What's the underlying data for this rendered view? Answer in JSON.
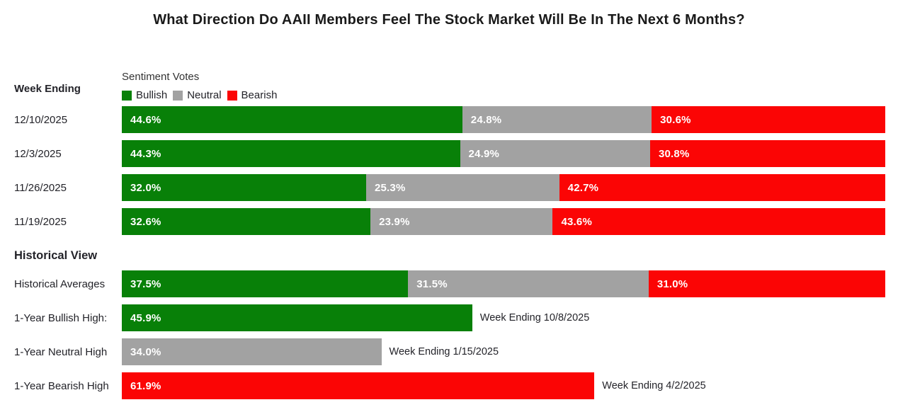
{
  "title": "What Direction Do AAII Members Feel The Stock Market Will Be In The Next 6 Months?",
  "colors": {
    "bullish": "#088008",
    "neutral": "#a2a2a2",
    "bearish": "#fb0505"
  },
  "left_header": "Week Ending",
  "legend": {
    "title": "Sentiment Votes",
    "items": [
      {
        "label": "Bullish"
      },
      {
        "label": "Neutral"
      },
      {
        "label": "Bearish"
      }
    ]
  },
  "weekly_rows": [
    {
      "date": "12/10/2025",
      "segments": [
        {
          "label": "44.6%",
          "pct": 44.6
        },
        {
          "label": "24.8%",
          "pct": 24.8
        },
        {
          "label": "30.6%",
          "pct": 30.6
        }
      ]
    },
    {
      "date": "12/3/2025",
      "segments": [
        {
          "label": "44.3%",
          "pct": 44.3
        },
        {
          "label": "24.9%",
          "pct": 24.9
        },
        {
          "label": "30.8%",
          "pct": 30.8
        }
      ]
    },
    {
      "date": "11/26/2025",
      "segments": [
        {
          "label": "32.0%",
          "pct": 32.0
        },
        {
          "label": "25.3%",
          "pct": 25.3
        },
        {
          "label": "42.7%",
          "pct": 42.7
        }
      ]
    },
    {
      "date": "11/19/2025",
      "segments": [
        {
          "label": "32.6%",
          "pct": 32.6
        },
        {
          "label": "23.9%",
          "pct": 23.9
        },
        {
          "label": "43.6%",
          "pct": 43.6
        }
      ]
    }
  ],
  "historical": {
    "heading": "Historical View",
    "averages": {
      "label": "Historical Averages",
      "segments": [
        {
          "label": "37.5%",
          "pct": 37.5
        },
        {
          "label": "31.5%",
          "pct": 31.5
        },
        {
          "label": "31.0%",
          "pct": 31.0
        }
      ]
    },
    "highs": [
      {
        "label": "1-Year Bullish High:",
        "bar_label": "45.9%",
        "pct": 45.9,
        "note": "Week Ending 10/8/2025"
      },
      {
        "label": "1-Year Neutral High",
        "bar_label": "34.0%",
        "pct": 34.0,
        "note": "Week Ending 1/15/2025"
      },
      {
        "label": "1-Year Bearish High",
        "bar_label": "61.9%",
        "pct": 61.9,
        "note": "Week Ending 4/2/2025"
      }
    ]
  },
  "chart_data": {
    "type": "bar",
    "subtype": "stacked-horizontal",
    "title": "What Direction Do AAII Members Feel The Stock Market Will Be In The Next 6 Months?",
    "legend": [
      "Bullish",
      "Neutral",
      "Bearish"
    ],
    "legend_position": "top-left",
    "legend_title": "Sentiment Votes",
    "axis_left_header": "Week Ending",
    "categories": [
      "12/10/2025",
      "12/3/2025",
      "11/26/2025",
      "11/19/2025",
      "Historical Averages"
    ],
    "series": [
      {
        "name": "Bullish",
        "color": "#088008",
        "values": [
          44.6,
          44.3,
          32.0,
          32.6,
          37.5
        ]
      },
      {
        "name": "Neutral",
        "color": "#a2a2a2",
        "values": [
          24.8,
          24.9,
          25.3,
          23.9,
          31.5
        ]
      },
      {
        "name": "Bearish",
        "color": "#fb0505",
        "values": [
          30.6,
          30.8,
          42.7,
          43.6,
          31.0
        ]
      }
    ],
    "xlim": [
      0,
      100
    ],
    "grid": false,
    "section_heading": "Historical View",
    "annotations": [
      {
        "label": "1-Year Bullish High:",
        "series": "Bullish",
        "value": 45.9,
        "note": "Week Ending 10/8/2025"
      },
      {
        "label": "1-Year Neutral High",
        "series": "Neutral",
        "value": 34.0,
        "note": "Week Ending 1/15/2025"
      },
      {
        "label": "1-Year Bearish High",
        "series": "Bearish",
        "value": 61.9,
        "note": "Week Ending 4/2/2025"
      }
    ]
  }
}
